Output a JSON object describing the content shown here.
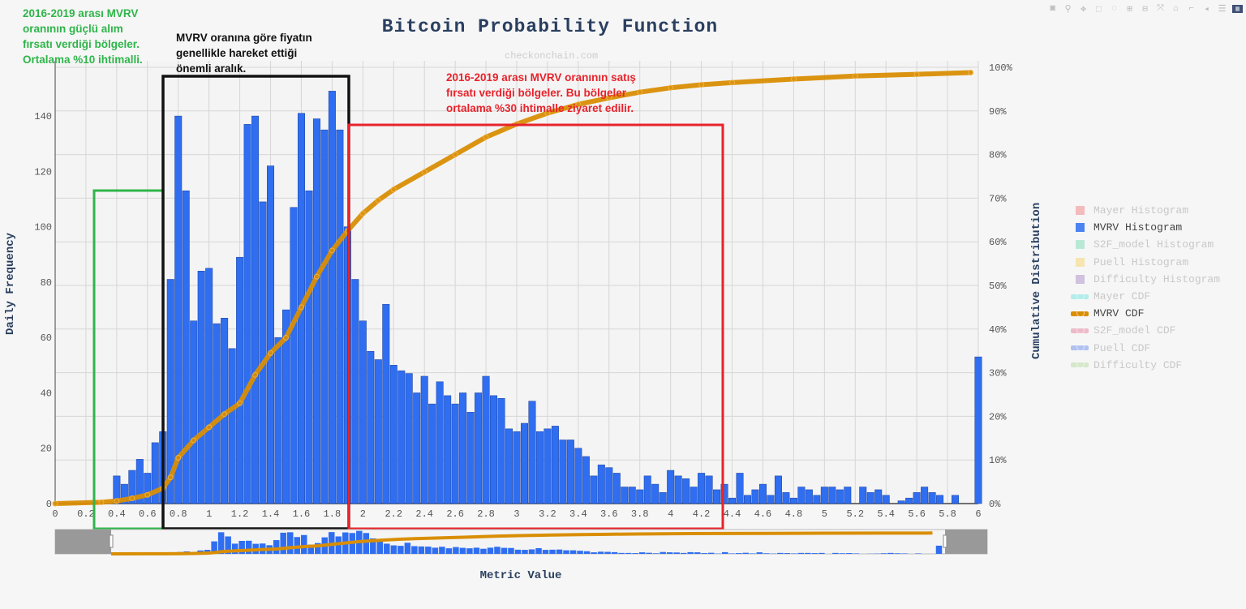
{
  "watermark": "checkonchain.com",
  "modebar": {
    "icons": [
      "camera-icon",
      "zoom-icon",
      "pan-icon",
      "box-select-icon",
      "lasso-icon",
      "zoom-in-icon",
      "zoom-out-icon",
      "autoscale-icon",
      "reset-axes-icon",
      "spike-lines-icon",
      "hover-closest-icon",
      "hover-compare-icon",
      "plotly-logo-icon"
    ]
  },
  "annotations": {
    "green": [
      "2016-2019 arası MVRV",
      "oranının güçlü alım",
      "fırsatı verdiği bölgeler.",
      "Ortalama %10 ihtimalli."
    ],
    "black": [
      "MVRV oranına göre fiyatın",
      "genellikle hareket ettiği",
      "önemli aralık."
    ],
    "red": [
      "2016-2019 arası MVRV oranının satış",
      "fırsatı verdiği bölgeler. Bu bölgeler",
      "ortalama %30 ihtimalle ziyaret edilir."
    ],
    "colors": {
      "green": "#2fb54a",
      "black": "#111111",
      "red": "#e8232b"
    }
  },
  "legend": [
    {
      "label": "Mayer Histogram",
      "kind": "hist",
      "color": "#f08080",
      "active": false
    },
    {
      "label": "MVRV Histogram",
      "kind": "hist",
      "color": "#2f6ef0",
      "active": true
    },
    {
      "label": "S2F_model Histogram",
      "kind": "hist",
      "color": "#7ed9b8",
      "active": false
    },
    {
      "label": "Puell Histogram",
      "kind": "hist",
      "color": "#f5d36b",
      "active": false
    },
    {
      "label": "Difficulty Histogram",
      "kind": "hist",
      "color": "#a98bc6",
      "active": false
    },
    {
      "label": "Mayer CDF",
      "kind": "cdf",
      "color": "#6ee6e0",
      "active": false
    },
    {
      "label": "MVRV CDF",
      "kind": "cdf",
      "color": "#d98e04",
      "active": true
    },
    {
      "label": "S2F_model CDF",
      "kind": "cdf",
      "color": "#e8809f",
      "active": false
    },
    {
      "label": "Puell CDF",
      "kind": "cdf",
      "color": "#6f8ff0",
      "active": false
    },
    {
      "label": "Difficulty CDF",
      "kind": "cdf",
      "color": "#b5dca0",
      "active": false
    }
  ],
  "chart_data": {
    "type": "bar",
    "title": "Bitcoin Probability Function",
    "xlabel": "Metric Value",
    "ylabel": "Daily Frequency",
    "y2label": "Cumulative Distribution",
    "xlim": [
      0,
      6
    ],
    "ylim": [
      0,
      157.6
    ],
    "y2lim": [
      0,
      100
    ],
    "grid": true,
    "legend_position": "right",
    "x_ticks": [
      "0",
      "0.2",
      "0.4",
      "0.6",
      "0.8",
      "1",
      "1.2",
      "1.4",
      "1.6",
      "1.8",
      "2",
      "2.2",
      "2.4",
      "2.6",
      "2.8",
      "3",
      "3.2",
      "3.4",
      "3.6",
      "3.8",
      "4",
      "4.2",
      "4.4",
      "4.6",
      "4.8",
      "5",
      "5.2",
      "5.4",
      "5.6",
      "5.8",
      "6"
    ],
    "y_ticks": [
      "0",
      "20",
      "40",
      "60",
      "80",
      "100",
      "120",
      "140"
    ],
    "y2_ticks": [
      "0%",
      "10%",
      "20%",
      "30%",
      "40%",
      "50%",
      "60%",
      "70%",
      "80%",
      "90%",
      "100%"
    ],
    "bin_width": 0.05,
    "series": [
      {
        "name": "MVRV Histogram",
        "type": "bar",
        "color": "#2f6ef0",
        "x": [
          0.4,
          0.45,
          0.5,
          0.55,
          0.6,
          0.65,
          0.7,
          0.75,
          0.8,
          0.85,
          0.9,
          0.95,
          1.0,
          1.05,
          1.1,
          1.15,
          1.2,
          1.25,
          1.3,
          1.35,
          1.4,
          1.45,
          1.5,
          1.55,
          1.6,
          1.65,
          1.7,
          1.75,
          1.8,
          1.85,
          1.9,
          1.95,
          2.0,
          2.05,
          2.1,
          2.15,
          2.2,
          2.25,
          2.3,
          2.35,
          2.4,
          2.45,
          2.5,
          2.55,
          2.6,
          2.65,
          2.7,
          2.75,
          2.8,
          2.85,
          2.9,
          2.95,
          3.0,
          3.05,
          3.1,
          3.15,
          3.2,
          3.25,
          3.3,
          3.35,
          3.4,
          3.45,
          3.5,
          3.55,
          3.6,
          3.65,
          3.7,
          3.75,
          3.8,
          3.85,
          3.9,
          3.95,
          4.0,
          4.05,
          4.1,
          4.15,
          4.2,
          4.25,
          4.3,
          4.35,
          4.4,
          4.45,
          4.5,
          4.55,
          4.6,
          4.65,
          4.7,
          4.75,
          4.8,
          4.85,
          4.9,
          4.95,
          5.0,
          5.05,
          5.1,
          5.15,
          5.25,
          5.3,
          5.35,
          5.4,
          5.5,
          5.55,
          5.6,
          5.65,
          5.7,
          5.75,
          5.85,
          6.0
        ],
        "values": [
          10,
          7,
          12,
          16,
          11,
          22,
          26,
          81,
          140,
          113,
          66,
          84,
          85,
          65,
          67,
          56,
          89,
          137,
          140,
          109,
          122,
          60,
          70,
          107,
          141,
          113,
          139,
          135,
          149,
          135,
          100,
          81,
          66,
          55,
          52,
          72,
          50,
          48,
          47,
          40,
          46,
          36,
          44,
          39,
          36,
          40,
          33,
          40,
          46,
          39,
          38,
          27,
          26,
          29,
          37,
          26,
          27,
          28,
          23,
          23,
          20,
          17,
          10,
          14,
          13,
          11,
          6,
          6,
          5,
          10,
          7,
          4,
          12,
          10,
          9,
          6,
          11,
          10,
          5,
          7,
          2,
          11,
          3,
          5,
          7,
          3,
          10,
          4,
          2,
          6,
          5,
          3,
          6,
          6,
          5,
          6,
          6,
          4,
          5,
          3,
          1,
          2,
          4,
          6,
          4,
          3,
          3,
          53
        ]
      },
      {
        "name": "MVRV CDF",
        "type": "line",
        "axis": "y2",
        "color": "#d98e04",
        "x": [
          0,
          0.3,
          0.4,
          0.5,
          0.6,
          0.7,
          0.75,
          0.8,
          0.9,
          1.0,
          1.1,
          1.2,
          1.3,
          1.4,
          1.5,
          1.6,
          1.7,
          1.8,
          1.9,
          2.0,
          2.1,
          2.2,
          2.4,
          2.6,
          2.8,
          3.0,
          3.2,
          3.4,
          3.6,
          3.8,
          4.0,
          4.2,
          4.4,
          4.8,
          5.2,
          5.6,
          5.95
        ],
        "values": [
          0,
          0.3,
          0.6,
          1.2,
          2,
          3.5,
          6,
          10.5,
          14.5,
          17.5,
          20.5,
          23,
          29.5,
          34.5,
          38,
          45,
          52,
          58,
          62.5,
          66.5,
          69.5,
          72,
          76,
          80,
          84,
          87,
          89.5,
          91.5,
          93,
          94.3,
          95.3,
          96,
          96.5,
          97.3,
          98,
          98.4,
          98.8
        ]
      }
    ],
    "range_slider": {
      "selected": [
        0,
        6
      ]
    }
  }
}
